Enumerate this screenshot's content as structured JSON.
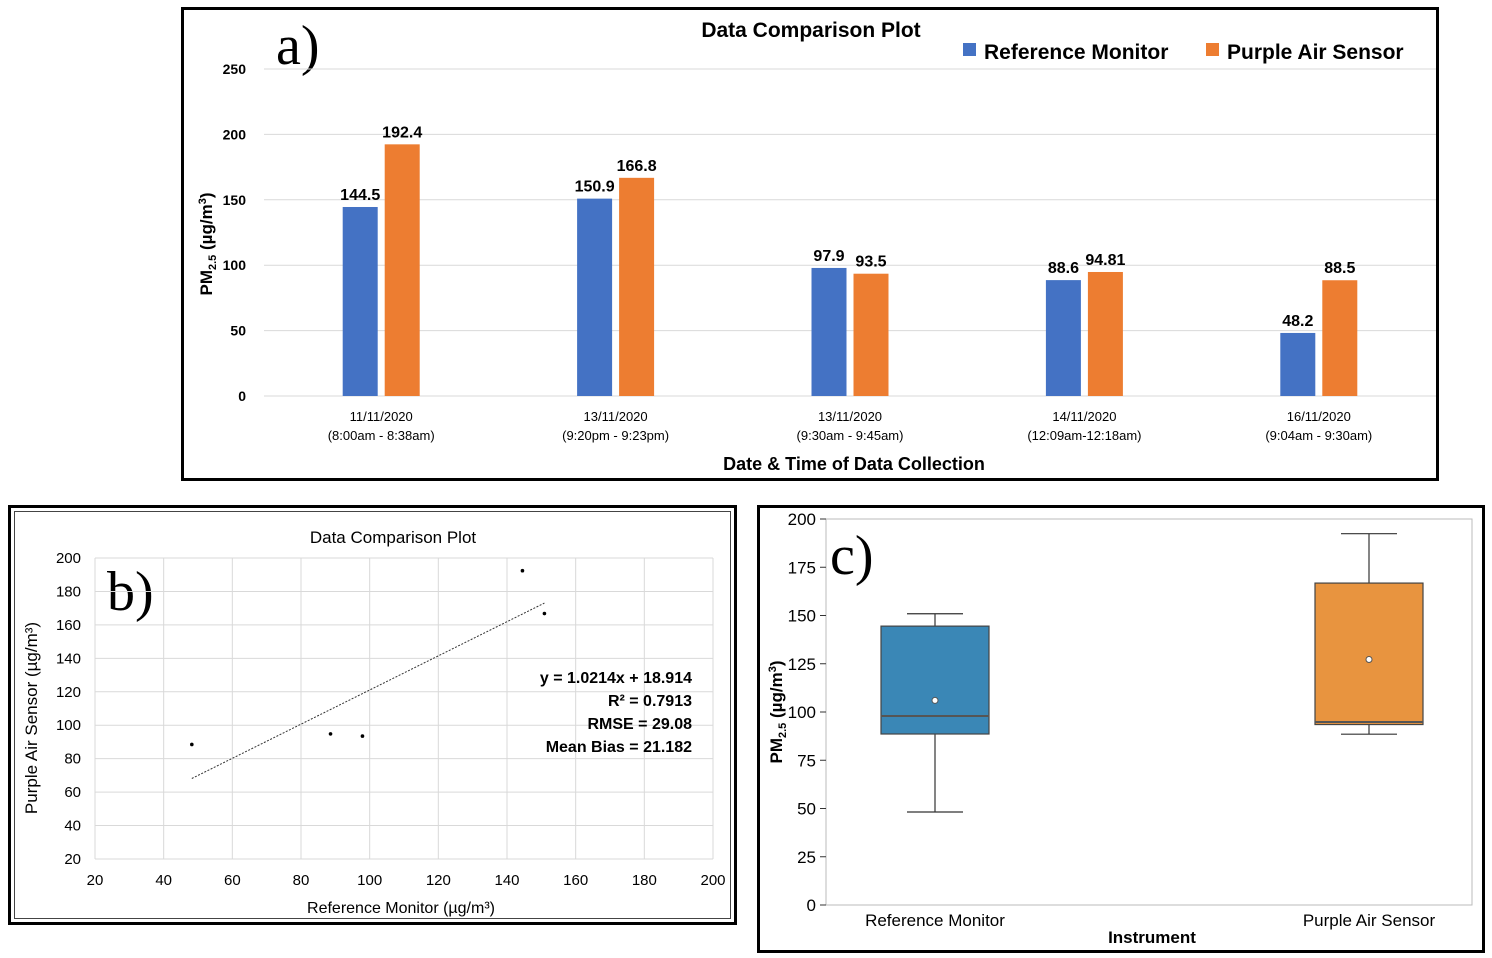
{
  "colors": {
    "reference_bar": "#4472c4",
    "purple_bar": "#ed7d31",
    "reference_box": "#3a87b6",
    "purple_box": "#e8943f",
    "grid": "#d9d9d9",
    "frame": "#000000"
  },
  "chart_data": [
    {
      "panel": "a)",
      "type": "bar",
      "title": "Data Comparison Plot",
      "xlabel": "Date & Time of Data Collection",
      "ylabel": "PM2.5 (µg/m³)",
      "ylim": [
        0,
        250
      ],
      "yticks": [
        0,
        50,
        100,
        150,
        200,
        250
      ],
      "categories": [
        {
          "date": "11/11/2020",
          "time": "(8:00am - 8:38am)"
        },
        {
          "date": "13/11/2020",
          "time": "(9:20pm - 9:23pm)"
        },
        {
          "date": "13/11/2020",
          "time": "(9:30am - 9:45am)"
        },
        {
          "date": "14/11/2020",
          "time": "(12:09am-12:18am)"
        },
        {
          "date": "16/11/2020",
          "time": "(9:04am - 9:30am)"
        }
      ],
      "series": [
        {
          "name": "Reference Monitor",
          "values": [
            144.5,
            150.9,
            97.9,
            88.6,
            48.2
          ],
          "labels": [
            "144.5",
            "150.9",
            "97.9",
            "88.6",
            "48.2"
          ]
        },
        {
          "name": "Purple Air Sensor",
          "values": [
            192.4,
            166.8,
            93.5,
            94.81,
            88.5
          ],
          "labels": [
            "192.4",
            "166.8",
            "93.5",
            "94.81",
            "88.5"
          ]
        }
      ],
      "legend_position": "top-right"
    },
    {
      "panel": "b)",
      "type": "scatter",
      "title": "Data Comparison Plot",
      "xlabel": "Reference Monitor (µg/m³)",
      "ylabel": "Purple Air Sensor (µg/m³)",
      "xlim": [
        20,
        200
      ],
      "ylim": [
        20,
        200
      ],
      "xticks": [
        20,
        40,
        60,
        80,
        100,
        120,
        140,
        160,
        180,
        200
      ],
      "yticks": [
        20,
        40,
        60,
        80,
        100,
        120,
        140,
        160,
        180,
        200
      ],
      "points": [
        [
          144.5,
          192.4
        ],
        [
          150.9,
          166.8
        ],
        [
          97.9,
          93.5
        ],
        [
          88.6,
          94.81
        ],
        [
          48.2,
          88.5
        ]
      ],
      "trendline": {
        "slope": 1.0214,
        "intercept": 18.914,
        "x_range": [
          48.2,
          150.9
        ]
      },
      "annotations": [
        "y = 1.0214x + 18.914",
        "R² = 0.7913",
        "RMSE = 29.08",
        "Mean Bias = 21.182"
      ]
    },
    {
      "panel": "c)",
      "type": "box",
      "xlabel": "Instrument",
      "ylabel": "PM2.5 (µg/m³)",
      "ylim": [
        0,
        200
      ],
      "yticks": [
        0,
        25,
        50,
        75,
        100,
        125,
        150,
        175,
        200
      ],
      "boxes": [
        {
          "name": "Reference Monitor",
          "min": 48.2,
          "q1": 88.6,
          "median": 97.9,
          "q3": 144.5,
          "max": 150.9,
          "mean": 106.0
        },
        {
          "name": "Purple Air Sensor",
          "min": 88.5,
          "q1": 93.5,
          "median": 94.81,
          "q3": 166.8,
          "max": 192.4,
          "mean": 127.2
        }
      ]
    }
  ]
}
